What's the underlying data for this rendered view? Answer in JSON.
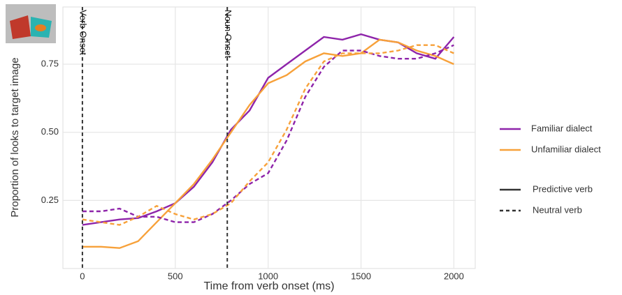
{
  "chart_data": {
    "type": "line",
    "x_label": "Time from verb onset (ms)",
    "y_label": "Proportion of looks to target image",
    "x": [
      0,
      100,
      200,
      300,
      400,
      500,
      600,
      700,
      800,
      900,
      1000,
      1100,
      1200,
      1300,
      1400,
      1500,
      1600,
      1700,
      1800,
      1900,
      2000
    ],
    "series": [
      {
        "color": "#8e24aa",
        "dashed": false,
        "values": [
          0.16,
          0.17,
          0.18,
          0.185,
          0.21,
          0.24,
          0.3,
          0.39,
          0.51,
          0.58,
          0.7,
          0.75,
          0.8,
          0.85,
          0.84,
          0.86,
          0.84,
          0.83,
          0.79,
          0.77,
          0.85
        ]
      },
      {
        "color": "#f7a13a",
        "dashed": false,
        "values": [
          0.08,
          0.08,
          0.075,
          0.1,
          0.17,
          0.24,
          0.31,
          0.4,
          0.5,
          0.6,
          0.68,
          0.71,
          0.76,
          0.79,
          0.78,
          0.79,
          0.84,
          0.83,
          0.8,
          0.78,
          0.75
        ]
      },
      {
        "color": "#8e24aa",
        "dashed": true,
        "values": [
          0.21,
          0.21,
          0.22,
          0.19,
          0.19,
          0.17,
          0.17,
          0.2,
          0.25,
          0.31,
          0.35,
          0.47,
          0.63,
          0.74,
          0.8,
          0.8,
          0.78,
          0.77,
          0.77,
          0.79,
          0.82
        ]
      },
      {
        "color": "#f7a13a",
        "dashed": true,
        "values": [
          0.18,
          0.17,
          0.16,
          0.19,
          0.23,
          0.2,
          0.18,
          0.2,
          0.24,
          0.32,
          0.39,
          0.51,
          0.66,
          0.76,
          0.79,
          0.79,
          0.79,
          0.8,
          0.82,
          0.82,
          0.79
        ]
      }
    ],
    "xlim": [
      -105,
      2115
    ],
    "xticks": [
      0,
      500,
      1000,
      1500,
      2000
    ],
    "ylim": [
      0,
      0.96
    ],
    "yticks": [
      0.25,
      {
        "value": 0.5,
        "label": "0.50"
      },
      0.75
    ],
    "grid": true,
    "annotations": [
      {
        "x": 0,
        "label": "Verb Onset"
      },
      {
        "x": 780,
        "label": "Noun Onset"
      }
    ],
    "legend": {
      "color": [
        {
          "name": "Familiar dialect",
          "color": "#8e24aa"
        },
        {
          "name": "Unfamiliar dialect",
          "color": "#f7a13a"
        }
      ],
      "linetype": [
        {
          "name": "Predictive verb",
          "dashed": false
        },
        {
          "name": "Neutral verb",
          "dashed": true
        }
      ]
    }
  }
}
